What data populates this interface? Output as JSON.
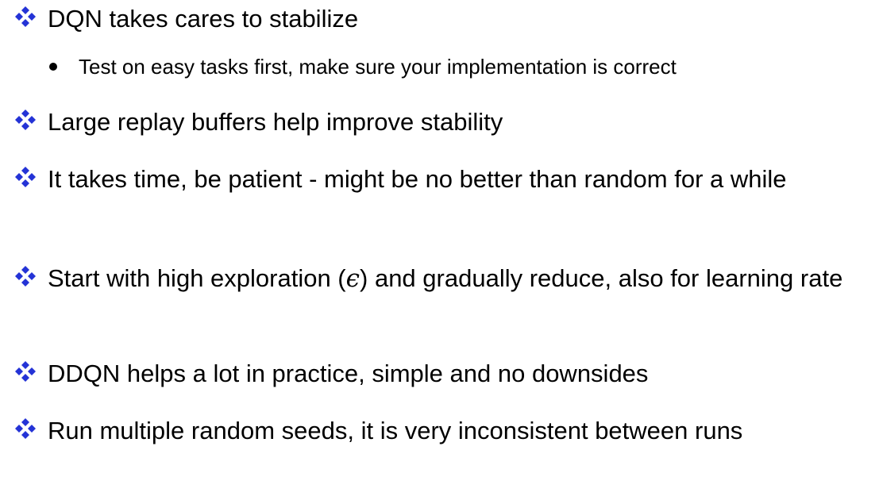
{
  "colors": {
    "accent": "#2433d6",
    "text": "#000000"
  },
  "icons": {
    "main_bullet": "four-diamond-icon",
    "sub_bullet": "round-dot-icon"
  },
  "bullets": [
    {
      "text": "DQN takes cares to stabilize",
      "sub": [
        "Test on easy tasks first, make sure your implementation is correct"
      ]
    },
    {
      "text": "Large replay buffers help improve stability"
    },
    {
      "text": "It takes time, be patient - might be no better than random for a while"
    },
    {
      "text_before": "Start with high exploration (",
      "symbol": "ϵ",
      "text_after": ") and gradually reduce, also for learning rate"
    },
    {
      "text": "DDQN helps a lot in practice, simple and no downsides"
    },
    {
      "text": "Run multiple random seeds, it is very inconsistent between runs"
    }
  ]
}
